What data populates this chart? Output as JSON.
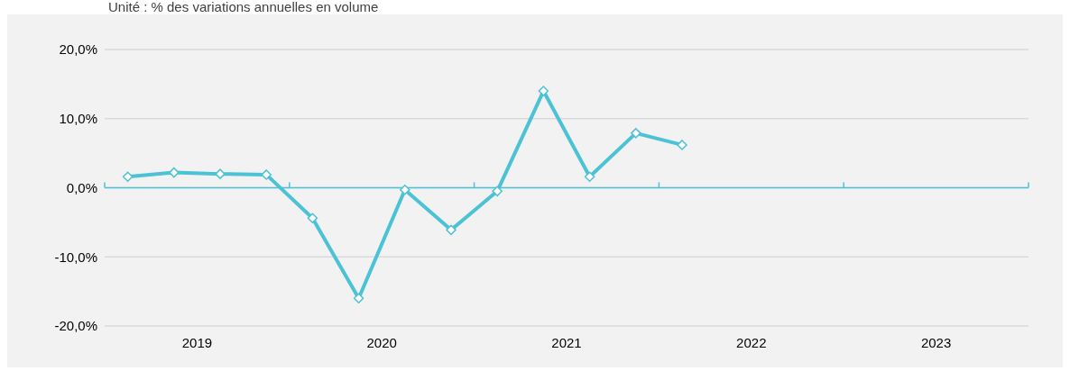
{
  "chart_data": {
    "type": "line",
    "subtitle": "Unité : % des variations annuelles en volume",
    "x": [
      2019.125,
      2019.375,
      2019.625,
      2019.875,
      2020.125,
      2020.375,
      2020.625,
      2020.875,
      2021.125,
      2021.375,
      2021.625,
      2021.875,
      2022.125
    ],
    "series": [
      {
        "color": "#4bc2d5",
        "values": [
          1.6,
          2.2,
          2.0,
          1.9,
          -4.4,
          -16.0,
          -0.3,
          -6.1,
          -0.5,
          14.0,
          1.6,
          7.9,
          6.2
        ]
      }
    ],
    "xlim": [
      2019,
      2024
    ],
    "xticks": [
      {
        "value": 2019,
        "label": null
      },
      {
        "value": 2019.5,
        "label": "2019"
      },
      {
        "value": 2020,
        "label": null
      },
      {
        "value": 2020.5,
        "label": "2020"
      },
      {
        "value": 2021,
        "label": null
      },
      {
        "value": 2021.5,
        "label": "2021"
      },
      {
        "value": 2022,
        "label": null
      },
      {
        "value": 2022.5,
        "label": "2022"
      },
      {
        "value": 2023,
        "label": null
      },
      {
        "value": 2023.5,
        "label": "2023"
      },
      {
        "value": 2024,
        "label": null
      }
    ],
    "ylim": [
      -20,
      20
    ],
    "yticks": [
      {
        "value": -20,
        "label": "-20,0%"
      },
      {
        "value": -10,
        "label": "-10,0%"
      },
      {
        "value": 0,
        "label": "0,0%"
      },
      {
        "value": 10,
        "label": "10,0%"
      },
      {
        "value": 20,
        "label": "20,0%"
      }
    ],
    "ref_lines": [
      {
        "axis": "y",
        "value": 0,
        "color": "#4bc2d5"
      }
    ],
    "grid": "y",
    "marker": "diamond",
    "line_style": "solid"
  }
}
